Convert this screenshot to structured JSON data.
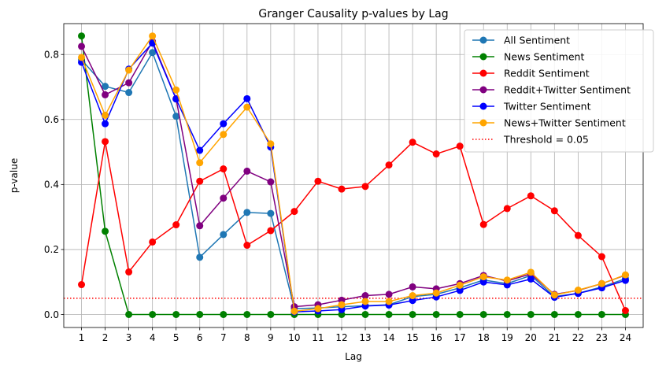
{
  "chart_data": {
    "type": "line",
    "title": "Granger Causality p-values by Lag",
    "xlabel": "Lag",
    "ylabel": "p-value",
    "x": [
      1,
      2,
      3,
      4,
      5,
      6,
      7,
      8,
      9,
      10,
      11,
      12,
      13,
      14,
      15,
      16,
      17,
      18,
      19,
      20,
      21,
      22,
      23,
      24
    ],
    "xlim": [
      0.25,
      24.75
    ],
    "ylim": [
      -0.04,
      0.895
    ],
    "yticks": [
      0.0,
      0.2,
      0.4,
      0.6,
      0.8
    ],
    "ytick_labels": [
      "0.0",
      "0.2",
      "0.4",
      "0.6",
      "0.8"
    ],
    "grid": true,
    "legend_position": "top-right",
    "series": [
      {
        "name": "All Sentiment",
        "color": "#1f77b4",
        "values": [
          0.784,
          0.702,
          0.683,
          0.806,
          0.61,
          0.176,
          0.246,
          0.314,
          0.311,
          0.018,
          0.02,
          0.024,
          0.027,
          0.03,
          0.055,
          0.062,
          0.082,
          0.106,
          0.095,
          0.12,
          0.055,
          0.065,
          0.085,
          0.11
        ]
      },
      {
        "name": "News Sentiment",
        "color": "#008000",
        "values": [
          0.857,
          0.256,
          0.0,
          0.0,
          0.0,
          0.0,
          0.0,
          0.0,
          0.0,
          0.0,
          0.0,
          0.0,
          0.0,
          0.0,
          0.0,
          0.0,
          0.0,
          0.0,
          0.0,
          0.0,
          0.0,
          0.0,
          0.0,
          0.0
        ]
      },
      {
        "name": "Reddit Sentiment",
        "color": "#ff0000",
        "values": [
          0.092,
          0.532,
          0.131,
          0.223,
          0.276,
          0.41,
          0.448,
          0.213,
          0.258,
          0.317,
          0.41,
          0.386,
          0.394,
          0.46,
          0.53,
          0.494,
          0.518,
          0.277,
          0.326,
          0.365,
          0.319,
          0.243,
          0.178,
          0.012
        ]
      },
      {
        "name": "Reddit+Twitter Sentiment",
        "color": "#800080",
        "values": [
          0.825,
          0.676,
          0.713,
          0.84,
          0.664,
          0.273,
          0.358,
          0.441,
          0.408,
          0.024,
          0.03,
          0.044,
          0.058,
          0.062,
          0.085,
          0.079,
          0.095,
          0.12,
          0.103,
          0.125,
          0.062,
          0.074,
          0.095,
          0.121
        ]
      },
      {
        "name": "Twitter Sentiment",
        "color": "#0000ff",
        "values": [
          0.776,
          0.587,
          0.755,
          0.835,
          0.663,
          0.505,
          0.587,
          0.664,
          0.515,
          0.008,
          0.011,
          0.015,
          0.026,
          0.029,
          0.043,
          0.054,
          0.074,
          0.1,
          0.091,
          0.109,
          0.053,
          0.065,
          0.082,
          0.105
        ]
      },
      {
        "name": "News+Twitter Sentiment",
        "color": "#ffa500",
        "values": [
          0.791,
          0.613,
          0.752,
          0.857,
          0.691,
          0.467,
          0.554,
          0.638,
          0.525,
          0.01,
          0.018,
          0.03,
          0.04,
          0.04,
          0.058,
          0.066,
          0.09,
          0.116,
          0.106,
          0.13,
          0.06,
          0.075,
          0.095,
          0.122
        ]
      }
    ],
    "threshold": {
      "value": 0.05,
      "label": "Threshold = 0.05",
      "color": "#ff0000",
      "style": "dotted"
    }
  }
}
